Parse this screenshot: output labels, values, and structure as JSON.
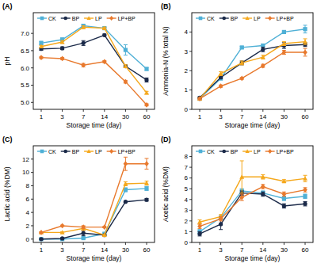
{
  "chart_data": [
    {
      "type": "line",
      "title": "(A)",
      "x_label": "Storage time (day)",
      "y_label": "pH",
      "categories": [
        "1",
        "3",
        "7",
        "14",
        "30",
        "60"
      ],
      "ylim": [
        4.8,
        7.6
      ],
      "yticks": [
        {
          "value": 5,
          "label": "5.0"
        },
        {
          "value": 5.5,
          "label": "5.5"
        },
        {
          "value": 6,
          "label": "6.0"
        },
        {
          "value": 6.5,
          "label": "6.5"
        },
        {
          "value": 7,
          "label": "7.0"
        }
      ],
      "legend": "top",
      "series": [
        {
          "name": "CK",
          "color": "#4fb0d6",
          "marker": "square",
          "values": [
            6.72,
            6.82,
            7.22,
            7.15,
            6.52,
            5.97
          ],
          "errors": [
            0.05,
            0.05,
            0.04,
            0.03,
            0.15,
            0.04
          ]
        },
        {
          "name": "BP",
          "color": "#1b2a49",
          "marker": "circle",
          "values": [
            6.55,
            6.57,
            6.72,
            6.95,
            6.05,
            5.65
          ],
          "errors": [
            0.04,
            0.04,
            0.07,
            0.03,
            0.04,
            0.06
          ]
        },
        {
          "name": "LP",
          "color": "#f5a81c",
          "marker": "triangle",
          "values": [
            6.62,
            6.75,
            7.18,
            7.15,
            6.05,
            5.28
          ],
          "errors": [
            0.03,
            0.04,
            0.04,
            0.03,
            0.04,
            0.04
          ]
        },
        {
          "name": "LP+BP",
          "color": "#e8792d",
          "marker": "diamond",
          "values": [
            6.3,
            6.27,
            6.08,
            6.18,
            5.6,
            4.93
          ],
          "errors": [
            0.03,
            0.03,
            0.05,
            0.03,
            0.04,
            0.03
          ]
        }
      ]
    },
    {
      "type": "line",
      "title": "(B)",
      "x_label": "Storage time (day)",
      "y_label": "Ammonia-N (% total N)",
      "categories": [
        "1",
        "3",
        "7",
        "14",
        "30",
        "60"
      ],
      "ylim": [
        0,
        5
      ],
      "yticks": [
        0,
        1,
        2,
        3,
        4
      ],
      "legend": "top",
      "series": [
        {
          "name": "CK",
          "color": "#4fb0d6",
          "marker": "square",
          "values": [
            0.55,
            1.6,
            3.2,
            3.3,
            4.0,
            4.15
          ],
          "errors": [
            0.05,
            0.08,
            0.06,
            0.08,
            0.05,
            0.2
          ]
        },
        {
          "name": "BP",
          "color": "#1b2a49",
          "marker": "circle",
          "values": [
            0.6,
            1.65,
            2.4,
            3.1,
            3.3,
            3.35
          ],
          "errors": [
            0.05,
            0.06,
            0.1,
            0.12,
            0.15,
            0.1
          ]
        },
        {
          "name": "LP",
          "color": "#f5a81c",
          "marker": "triangle",
          "values": [
            0.55,
            1.85,
            2.4,
            2.7,
            3.4,
            3.5
          ],
          "errors": [
            0.05,
            0.1,
            0.1,
            0.1,
            0.1,
            0.15
          ]
        },
        {
          "name": "LP+BP",
          "color": "#e8792d",
          "marker": "diamond",
          "values": [
            0.55,
            1.2,
            1.6,
            2.25,
            2.95,
            2.95
          ],
          "errors": [
            0.05,
            0.06,
            0.05,
            0.08,
            0.1,
            0.2
          ]
        }
      ]
    },
    {
      "type": "line",
      "title": "(C)",
      "x_label": "Storage time (day)",
      "y_label": "Lactic acid (%DM)",
      "categories": [
        "1",
        "3",
        "7",
        "14",
        "30",
        "60"
      ],
      "ylim": [
        -0.5,
        14
      ],
      "yticks": [
        0,
        2,
        4,
        6,
        8,
        10,
        12
      ],
      "legend": "top",
      "series": [
        {
          "name": "CK",
          "color": "#4fb0d6",
          "marker": "square",
          "values": [
            0.0,
            0.0,
            0.15,
            0.8,
            7.4,
            7.6
          ],
          "errors": [
            0.05,
            0.05,
            0.1,
            0.1,
            0.3,
            0.3
          ]
        },
        {
          "name": "BP",
          "color": "#1b2a49",
          "marker": "circle",
          "values": [
            0.0,
            0.1,
            0.9,
            0.6,
            5.6,
            5.9
          ],
          "errors": [
            0.05,
            0.05,
            0.4,
            0.1,
            0.1,
            0.2
          ]
        },
        {
          "name": "LP",
          "color": "#f5a81c",
          "marker": "triangle",
          "values": [
            1.0,
            1.0,
            1.6,
            0.6,
            8.3,
            8.4
          ],
          "errors": [
            0.1,
            0.1,
            0.3,
            0.1,
            0.3,
            0.3
          ]
        },
        {
          "name": "LP+BP",
          "color": "#e8792d",
          "marker": "diamond",
          "values": [
            1.0,
            2.0,
            1.8,
            1.8,
            11.3,
            11.3
          ],
          "errors": [
            0.1,
            0.1,
            0.2,
            0.1,
            1.0,
            0.8
          ]
        }
      ]
    },
    {
      "type": "line",
      "title": "(D)",
      "x_label": "Storage time (day)",
      "y_label": "Acetic acid (%DM)",
      "categories": [
        "1",
        "3",
        "7",
        "14",
        "30",
        "60"
      ],
      "ylim": [
        0,
        9
      ],
      "yticks": [
        0,
        1,
        2,
        3,
        4,
        5,
        6,
        7,
        8
      ],
      "legend": "top",
      "series": [
        {
          "name": "CK",
          "color": "#4fb0d6",
          "marker": "square",
          "values": [
            1.0,
            2.3,
            4.8,
            4.6,
            4.1,
            4.3
          ],
          "errors": [
            0.2,
            0.2,
            0.2,
            0.2,
            0.2,
            0.2
          ]
        },
        {
          "name": "BP",
          "color": "#1b2a49",
          "marker": "circle",
          "values": [
            0.8,
            1.7,
            4.6,
            4.5,
            3.4,
            3.6
          ],
          "errors": [
            0.2,
            0.5,
            0.2,
            0.2,
            0.2,
            0.2
          ]
        },
        {
          "name": "LP",
          "color": "#f5a81c",
          "marker": "triangle",
          "values": [
            1.9,
            2.4,
            6.1,
            6.1,
            5.7,
            5.95
          ],
          "errors": [
            0.2,
            0.2,
            1.5,
            0.2,
            0.15,
            0.3
          ]
        },
        {
          "name": "LP+BP",
          "color": "#e8792d",
          "marker": "diamond",
          "values": [
            1.5,
            2.2,
            4.2,
            5.2,
            4.5,
            4.9
          ],
          "errors": [
            0.2,
            0.2,
            0.3,
            0.2,
            0.2,
            0.2
          ]
        }
      ]
    }
  ]
}
